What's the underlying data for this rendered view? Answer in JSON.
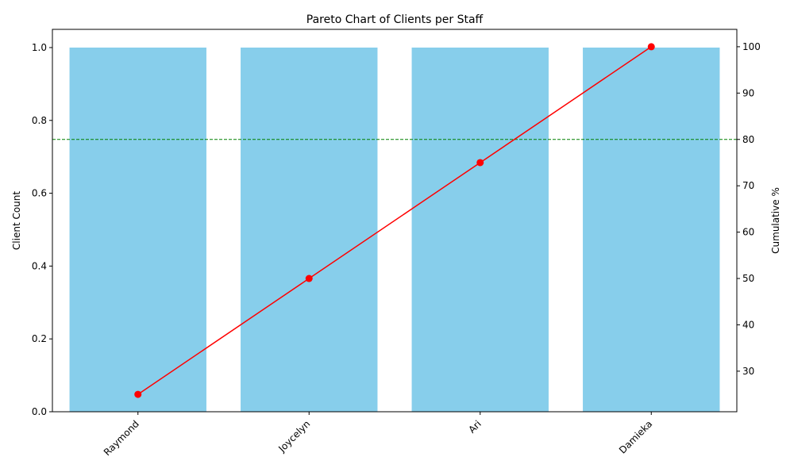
{
  "chart_data": {
    "type": "bar",
    "title": "Pareto Chart of Clients per Staff",
    "xlabel": "",
    "ylabel": "Client Count",
    "y2label": "Cumulative %",
    "categories": [
      "Raymond",
      "Joycelyn",
      "Ari",
      "Damieka"
    ],
    "series": [
      {
        "type": "bar",
        "values": [
          1,
          1,
          1,
          1
        ],
        "color": "#87CEEB"
      },
      {
        "type": "line",
        "axis": "right",
        "values": [
          25,
          50,
          75,
          100
        ],
        "color": "#FF0000"
      }
    ],
    "ylim": [
      0,
      1.05
    ],
    "y2lim": [
      21.25,
      103.75
    ],
    "yticks": [
      "0.0",
      "0.2",
      "0.4",
      "0.6",
      "0.8",
      "1.0"
    ],
    "y2ticks": [
      "30",
      "40",
      "50",
      "60",
      "70",
      "80",
      "90",
      "100"
    ],
    "reference_line": {
      "axis": "right",
      "value": 80,
      "color": "#008000",
      "style": "dashed"
    },
    "grid": false,
    "legend": "none"
  }
}
